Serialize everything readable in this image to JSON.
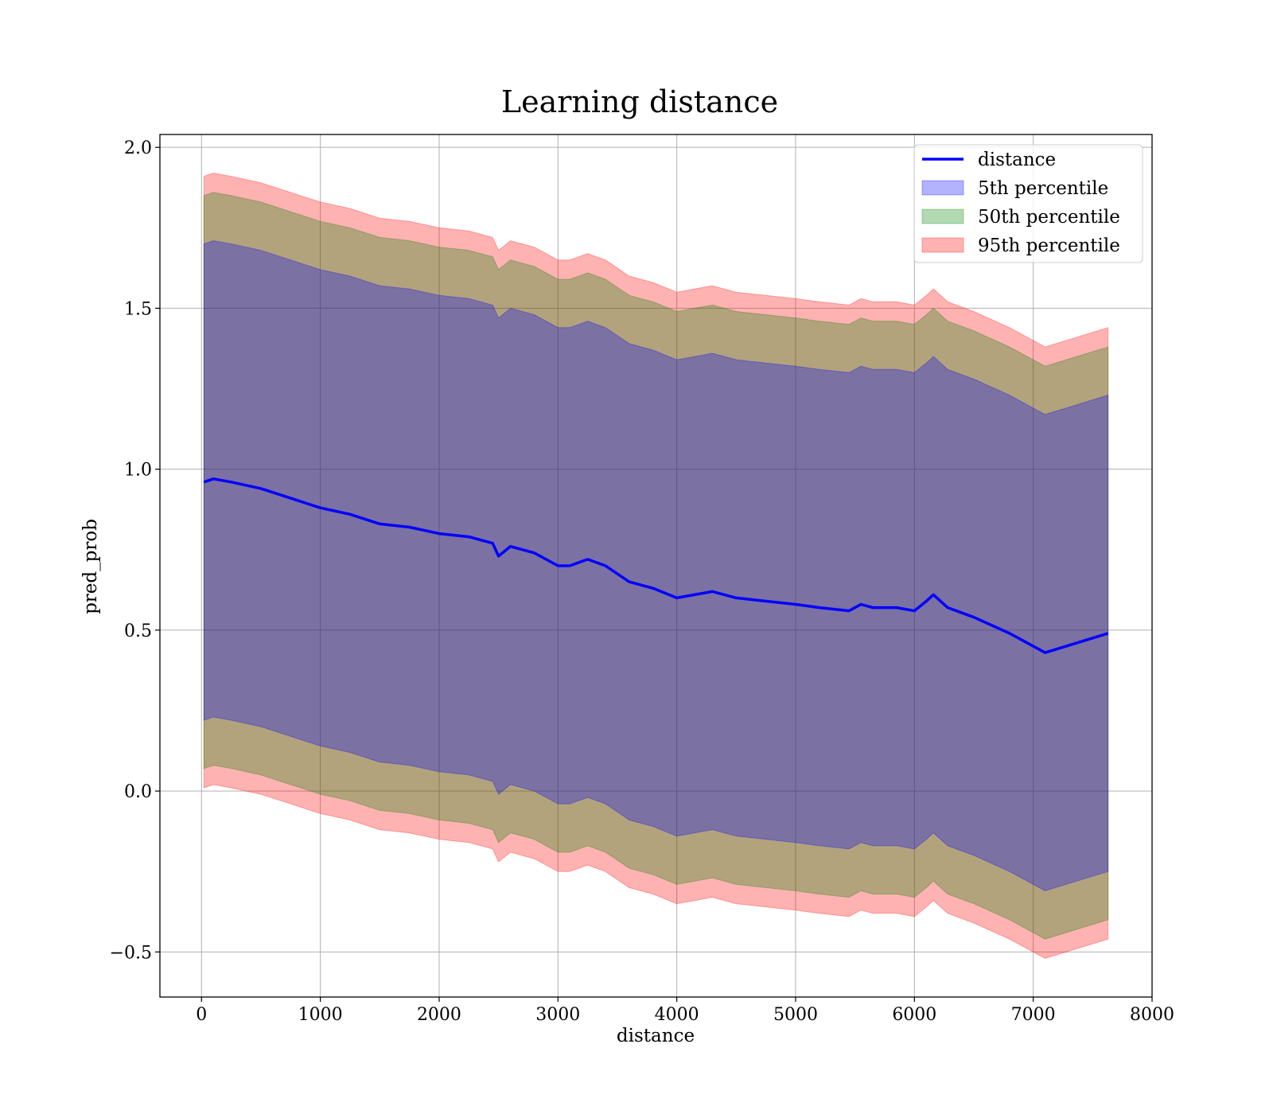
{
  "chart_data": {
    "type": "line",
    "title": "Learning distance",
    "xlabel": "distance",
    "ylabel": "pred_prob",
    "xlim": [
      -350,
      8000
    ],
    "ylim": [
      -0.64,
      2.04
    ],
    "x_ticks": [
      0,
      1000,
      2000,
      3000,
      4000,
      5000,
      6000,
      7000,
      8000
    ],
    "x_tick_labels": [
      "0",
      "1000",
      "2000",
      "3000",
      "4000",
      "5000",
      "6000",
      "7000",
      "8000"
    ],
    "y_ticks": [
      -0.5,
      0.0,
      0.5,
      1.0,
      1.5,
      2.0
    ],
    "y_tick_labels": [
      "−0.5",
      "0.0",
      "0.5",
      "1.0",
      "1.5",
      "2.0"
    ],
    "grid": true,
    "legend_position": "top-right",
    "x": [
      20,
      100,
      250,
      500,
      750,
      1000,
      1250,
      1500,
      1750,
      2000,
      2250,
      2450,
      2500,
      2600,
      2800,
      3000,
      3100,
      3250,
      3400,
      3600,
      3800,
      4000,
      4150,
      4300,
      4500,
      4750,
      5000,
      5200,
      5450,
      5550,
      5650,
      5850,
      6000,
      6100,
      6160,
      6280,
      6500,
      6800,
      7100,
      7630
    ],
    "series": [
      {
        "name": "distance",
        "kind": "line",
        "color": "#0000ff",
        "values": [
          0.96,
          0.97,
          0.96,
          0.94,
          0.91,
          0.88,
          0.86,
          0.83,
          0.82,
          0.8,
          0.79,
          0.77,
          0.73,
          0.76,
          0.74,
          0.7,
          0.7,
          0.72,
          0.7,
          0.65,
          0.63,
          0.6,
          0.61,
          0.62,
          0.6,
          0.59,
          0.58,
          0.57,
          0.56,
          0.58,
          0.57,
          0.57,
          0.56,
          0.59,
          0.61,
          0.57,
          0.54,
          0.49,
          0.43,
          0.49
        ]
      },
      {
        "name": "5th percentile",
        "kind": "band",
        "color": "#0000ff",
        "offset": 0.74
      },
      {
        "name": "50th percentile",
        "kind": "band",
        "color": "#008000",
        "offset": 0.89
      },
      {
        "name": "95th percentile",
        "kind": "band",
        "color": "#ff0000",
        "offset": 0.95
      }
    ],
    "colors": {
      "grid": "#b0b0b0",
      "axes": "#000000",
      "legend_border": "#cccccc"
    }
  }
}
